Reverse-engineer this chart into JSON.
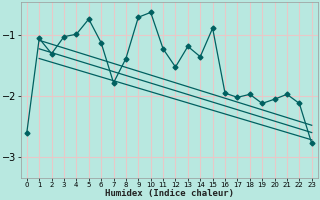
{
  "xlabel": "Humidex (Indice chaleur)",
  "bg_color": "#b8e8e0",
  "grid_color": "#e8c8c8",
  "line_color": "#006060",
  "xlim": [
    -0.5,
    23.5
  ],
  "ylim": [
    -3.35,
    -0.45
  ],
  "xticks": [
    0,
    1,
    2,
    3,
    4,
    5,
    6,
    7,
    8,
    9,
    10,
    11,
    12,
    13,
    14,
    15,
    16,
    17,
    18,
    19,
    20,
    21,
    22,
    23
  ],
  "yticks": [
    -3,
    -2,
    -1
  ],
  "main_x": [
    0,
    1,
    2,
    3,
    4,
    5,
    6,
    7,
    8,
    9,
    10,
    11,
    12,
    13,
    14,
    15,
    16,
    17,
    18,
    19,
    20,
    21,
    22,
    23
  ],
  "main_y": [
    -2.6,
    -1.05,
    -1.3,
    -1.02,
    -0.98,
    -0.73,
    -1.12,
    -1.78,
    -1.38,
    -0.7,
    -0.62,
    -1.22,
    -1.52,
    -1.18,
    -1.35,
    -0.88,
    -1.95,
    -2.02,
    -1.97,
    -2.12,
    -2.05,
    -1.97,
    -2.12,
    -2.78
  ],
  "trend1_x": [
    1,
    23
  ],
  "trend1_y": [
    -1.08,
    -2.48
  ],
  "trend2_x": [
    1,
    23
  ],
  "trend2_y": [
    -1.22,
    -2.6
  ],
  "trend3_x": [
    1,
    23
  ],
  "trend3_y": [
    -1.38,
    -2.72
  ]
}
